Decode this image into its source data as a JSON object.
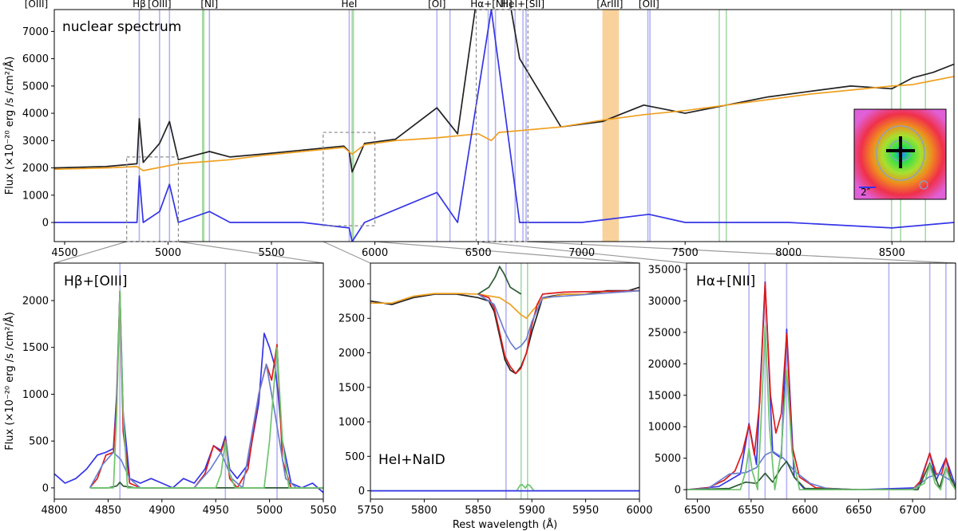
{
  "chart_data": [
    {
      "type": "line",
      "panel": "top",
      "title": "nuclear spectrum",
      "xlabel": "",
      "ylabel": "Flux (×10⁻²⁰ erg /s /cm²/Å)",
      "xlim": [
        4450,
        8800
      ],
      "ylim": [
        -700,
        7800
      ],
      "xticks": [
        4500,
        5000,
        5500,
        6000,
        6500,
        7000,
        7500,
        8000,
        8500
      ],
      "yticks": [
        0,
        1000,
        2000,
        3000,
        4000,
        5000,
        6000,
        7000
      ],
      "line_labels": [
        {
          "text": "[OIII]",
          "x": 4363
        },
        {
          "text": "Hβ",
          "x": 4861
        },
        {
          "text": "[OIII]",
          "x": 4959
        },
        {
          "text": "[NI]",
          "x": 5200
        },
        {
          "text": "HeI",
          "x": 5876
        },
        {
          "text": "[OI]",
          "x": 6300
        },
        {
          "text": "Hα+[NII]",
          "x": 6563
        },
        {
          "text": "HeI+[SII]",
          "x": 6716
        },
        {
          "text": "[ArIII]",
          "x": 7136
        },
        {
          "text": "[OII]",
          "x": 7325
        }
      ],
      "blue_lines": [
        4861,
        4959,
        5007,
        5200,
        5876,
        6300,
        6363,
        6548,
        6583,
        6678,
        6716,
        6731,
        7320,
        7330
      ],
      "green_lines": [
        5167,
        5173,
        5890,
        5896,
        7665,
        7699,
        8498,
        8542,
        8662
      ],
      "shaded_band": [
        7100,
        7180
      ],
      "insets": [
        "2″"
      ],
      "series": [
        {
          "name": "",
          "color": "#222222",
          "x": [
            4450,
            4700,
            4850,
            4861,
            4880,
            4959,
            5007,
            5050,
            5200,
            5300,
            5450,
            5650,
            5850,
            5876,
            5890,
            5950,
            6100,
            6300,
            6400,
            6563,
            6700,
            6900,
            7100,
            7300,
            7500,
            7700,
            7900,
            8100,
            8300,
            8500,
            8600,
            8700,
            8800
          ],
          "y": [
            2000,
            2050,
            2150,
            3800,
            2200,
            2900,
            3700,
            2300,
            2600,
            2400,
            2500,
            2650,
            2800,
            2600,
            1850,
            2900,
            3050,
            4200,
            3250,
            12000,
            6000,
            3500,
            3700,
            4300,
            4000,
            4300,
            4600,
            4800,
            5000,
            4900,
            5300,
            5500,
            5800
          ]
        },
        {
          "name": "",
          "color": "#f0a020",
          "x": [
            4450,
            4700,
            4850,
            4880,
            5050,
            5300,
            5450,
            5650,
            5850,
            5890,
            5950,
            6100,
            6300,
            6500,
            6563,
            6600,
            6900,
            7100,
            7300,
            7500,
            7700,
            7900,
            8100,
            8300,
            8500,
            8600,
            8700,
            8800
          ],
          "y": [
            1950,
            2000,
            2050,
            1900,
            2150,
            2300,
            2450,
            2600,
            2750,
            2500,
            2850,
            3000,
            3100,
            3250,
            3000,
            3300,
            3500,
            3750,
            3950,
            4100,
            4300,
            4500,
            4700,
            4850,
            5000,
            5050,
            5200,
            5350
          ]
        },
        {
          "name": "",
          "color": "#3535e8",
          "x": [
            4450,
            4850,
            4861,
            4880,
            4959,
            5007,
            5050,
            5200,
            5300,
            5450,
            5650,
            5876,
            5890,
            5950,
            6300,
            6400,
            6563,
            6700,
            7000,
            7325,
            7500,
            8000,
            8500,
            8800
          ],
          "y": [
            0,
            0,
            1700,
            0,
            400,
            1400,
            0,
            400,
            0,
            0,
            0,
            -200,
            -700,
            0,
            1100,
            0,
            7800,
            0,
            0,
            300,
            0,
            0,
            -200,
            0
          ]
        }
      ]
    },
    {
      "type": "line",
      "panel": "bottom-left",
      "title": "Hβ+[OIII]",
      "xlabel": "",
      "ylabel": "Flux (×10⁻²⁰ erg /s /cm²/Å)",
      "xlim": [
        4800,
        5050
      ],
      "ylim": [
        -120,
        2400
      ],
      "xticks": [
        4800,
        4850,
        4900,
        4950,
        5000,
        5050
      ],
      "yticks": [
        0,
        500,
        1000,
        1500,
        2000
      ],
      "vlines": [
        4861,
        4959,
        5007
      ],
      "series": [
        {
          "name": "",
          "color": "#3535e8",
          "x": [
            4800,
            4810,
            4820,
            4830,
            4840,
            4848,
            4855,
            4858,
            4861,
            4864,
            4870,
            4880,
            4890,
            4900,
            4910,
            4920,
            4930,
            4940,
            4948,
            4955,
            4959,
            4963,
            4970,
            4980,
            4990,
            4995,
            5000,
            5005,
            5008,
            5012,
            5020,
            5030,
            5040,
            5050
          ],
          "y": [
            150,
            50,
            100,
            200,
            350,
            380,
            420,
            1000,
            2100,
            800,
            100,
            50,
            100,
            50,
            0,
            100,
            50,
            200,
            450,
            400,
            550,
            200,
            100,
            250,
            900,
            1650,
            1500,
            1300,
            1000,
            500,
            50,
            0,
            50,
            -50
          ]
        },
        {
          "name": "",
          "color": "#dd1c1c",
          "x": [
            4833,
            4840,
            4848,
            4855,
            4858,
            4861,
            4864,
            4870,
            4880,
            4930,
            4940,
            4948,
            4955,
            4959,
            4963,
            4970,
            4980,
            4990,
            4997,
            5002,
            5007,
            5012,
            5020,
            5050
          ],
          "y": [
            0,
            100,
            350,
            380,
            900,
            2100,
            600,
            50,
            0,
            0,
            150,
            450,
            380,
            520,
            100,
            0,
            200,
            1000,
            1320,
            1150,
            1530,
            300,
            0,
            0
          ]
        },
        {
          "name": "",
          "color": "#6c7fd0",
          "x": [
            4833,
            4845,
            4855,
            4862,
            4870,
            4880,
            4930,
            4945,
            4955,
            4965,
            4975,
            4990,
            4997,
            5005,
            5015,
            5025,
            5050
          ],
          "y": [
            0,
            250,
            380,
            300,
            100,
            0,
            0,
            200,
            380,
            100,
            0,
            1000,
            1320,
            800,
            100,
            0,
            0
          ]
        },
        {
          "name": "",
          "color": "#2e5a35",
          "x": [
            4833,
            4850,
            4858,
            4861,
            4864,
            4875,
            5050
          ],
          "y": [
            0,
            0,
            20,
            60,
            20,
            0,
            0
          ]
        },
        {
          "name": "",
          "color": "#6ec46e",
          "x": [
            4833,
            4855,
            4858,
            4861,
            4864,
            4868,
            4950,
            4955,
            4959,
            4963,
            4968,
            4995,
            5000,
            5007,
            5012,
            5018,
            5050
          ],
          "y": [
            0,
            0,
            800,
            2100,
            800,
            0,
            0,
            150,
            500,
            150,
            0,
            0,
            500,
            1500,
            500,
            0,
            0
          ]
        }
      ]
    },
    {
      "type": "line",
      "panel": "bottom-middle",
      "title": "HeI+NaID",
      "xlabel": "Rest wavelength (Å)",
      "ylabel": "",
      "xlim": [
        5750,
        6000
      ],
      "ylim": [
        -120,
        3300
      ],
      "xticks": [
        5750,
        5800,
        5850,
        5900,
        5950,
        6000
      ],
      "yticks": [
        0,
        500,
        1000,
        1500,
        2000,
        2500,
        3000
      ],
      "vlines": [
        5876,
        5890,
        5896
      ],
      "series": [
        {
          "name": "",
          "color": "#222222",
          "x": [
            5750,
            5770,
            5790,
            5810,
            5830,
            5850,
            5860,
            5865,
            5870,
            5875,
            5880,
            5885,
            5890,
            5895,
            5900,
            5910,
            5930,
            5950,
            5970,
            5990,
            6000
          ],
          "y": [
            2750,
            2700,
            2800,
            2850,
            2850,
            2800,
            2750,
            2600,
            2250,
            1900,
            1750,
            1700,
            1800,
            2000,
            2300,
            2800,
            2850,
            2850,
            2900,
            2900,
            2950
          ]
        },
        {
          "name": "",
          "color": "#f0a020",
          "x": [
            5750,
            5770,
            5790,
            5810,
            5830,
            5850,
            5870,
            5880,
            5890,
            5895,
            5900,
            5910,
            5930,
            5950,
            5970,
            6000
          ],
          "y": [
            2720,
            2720,
            2820,
            2860,
            2860,
            2850,
            2800,
            2700,
            2550,
            2500,
            2600,
            2780,
            2850,
            2850,
            2870,
            2900
          ]
        },
        {
          "name": "",
          "color": "#dd1c1c",
          "x": [
            5850,
            5860,
            5865,
            5870,
            5875,
            5880,
            5885,
            5890,
            5895,
            5900,
            5905,
            5910,
            5930,
            6000
          ],
          "y": [
            2850,
            2800,
            2650,
            2300,
            1950,
            1800,
            1700,
            1780,
            2000,
            2400,
            2700,
            2850,
            2880,
            2900
          ]
        },
        {
          "name": "",
          "color": "#6c7fd0",
          "x": [
            5850,
            5865,
            5875,
            5880,
            5885,
            5890,
            5895,
            5900,
            5910,
            6000
          ],
          "y": [
            2850,
            2700,
            2300,
            2150,
            2050,
            2100,
            2200,
            2450,
            2800,
            2900
          ]
        },
        {
          "name": "",
          "color": "#2e5a35",
          "x": [
            5850,
            5860,
            5866,
            5870,
            5874,
            5880,
            5890
          ],
          "y": [
            2850,
            2950,
            3100,
            3250,
            3150,
            2950,
            2850
          ]
        },
        {
          "name": "",
          "color": "#6ec46e",
          "x": [
            5750,
            5886,
            5889,
            5891,
            5894,
            5896,
            5898,
            5902,
            6000
          ],
          "y": [
            0,
            0,
            80,
            90,
            40,
            90,
            80,
            0,
            0
          ]
        },
        {
          "name": "",
          "color": "#3535e8",
          "x": [
            5750,
            6000
          ],
          "y": [
            0,
            0
          ]
        }
      ]
    },
    {
      "type": "line",
      "panel": "bottom-right",
      "title": "Hα+[NII]",
      "xlabel": "",
      "ylabel": "",
      "xlim": [
        6490,
        6740
      ],
      "ylim": [
        -1500,
        36000
      ],
      "xticks": [
        6500,
        6550,
        6600,
        6650,
        6700
      ],
      "yticks": [
        0,
        5000,
        10000,
        15000,
        20000,
        25000,
        30000,
        35000
      ],
      "vlines": [
        6548,
        6563,
        6583,
        6678,
        6716,
        6731
      ],
      "series": [
        {
          "name": "",
          "color": "#3535e8",
          "x": [
            6490,
            6520,
            6540,
            6548,
            6555,
            6563,
            6570,
            6578,
            6583,
            6590,
            6600,
            6650,
            6705,
            6716,
            6722,
            6731,
            6740
          ],
          "y": [
            0,
            500,
            2500,
            10500,
            4000,
            33000,
            6000,
            5000,
            25500,
            2000,
            0,
            0,
            300,
            5800,
            1500,
            5000,
            500
          ]
        },
        {
          "name": "",
          "color": "#dd1c1c",
          "x": [
            6490,
            6510,
            6525,
            6535,
            6542,
            6548,
            6553,
            6558,
            6563,
            6568,
            6573,
            6578,
            6583,
            6588,
            6595,
            6610,
            6650,
            6700,
            6708,
            6716,
            6722,
            6727,
            6731,
            6736,
            6740
          ],
          "y": [
            0,
            300,
            1500,
            3000,
            6000,
            10300,
            5500,
            14000,
            32800,
            15000,
            9000,
            12000,
            24800,
            7000,
            2000,
            300,
            0,
            0,
            1500,
            5800,
            2500,
            2500,
            5000,
            1500,
            500
          ]
        },
        {
          "name": "",
          "color": "#6c7fd0",
          "x": [
            6490,
            6510,
            6530,
            6545,
            6555,
            6563,
            6570,
            6580,
            6590,
            6605,
            6620,
            6650,
            6700,
            6715,
            6725,
            6740
          ],
          "y": [
            0,
            200,
            2500,
            2700,
            3500,
            5500,
            6100,
            5000,
            3000,
            1000,
            200,
            0,
            0,
            2000,
            2500,
            1000
          ]
        },
        {
          "name": "",
          "color": "#2e5a35",
          "x": [
            6490,
            6530,
            6545,
            6555,
            6563,
            6570,
            6578,
            6583,
            6590,
            6600,
            6650,
            6705,
            6716,
            6725,
            6731,
            6740
          ],
          "y": [
            0,
            200,
            1200,
            1000,
            2600,
            1200,
            3500,
            4500,
            2000,
            200,
            0,
            0,
            4200,
            300,
            3500,
            300
          ]
        },
        {
          "name": "",
          "color": "#6ec46e",
          "x": [
            6490,
            6540,
            6545,
            6548,
            6551,
            6556,
            6559,
            6563,
            6567,
            6572,
            6578,
            6583,
            6588,
            6595,
            6700,
            6711,
            6716,
            6721,
            6726,
            6731,
            6736,
            6740
          ],
          "y": [
            0,
            0,
            3000,
            6500,
            3000,
            0,
            10000,
            26000,
            10000,
            0,
            6000,
            19000,
            6000,
            0,
            0,
            1000,
            4000,
            1000,
            0,
            3500,
            1000,
            0
          ]
        }
      ]
    }
  ]
}
